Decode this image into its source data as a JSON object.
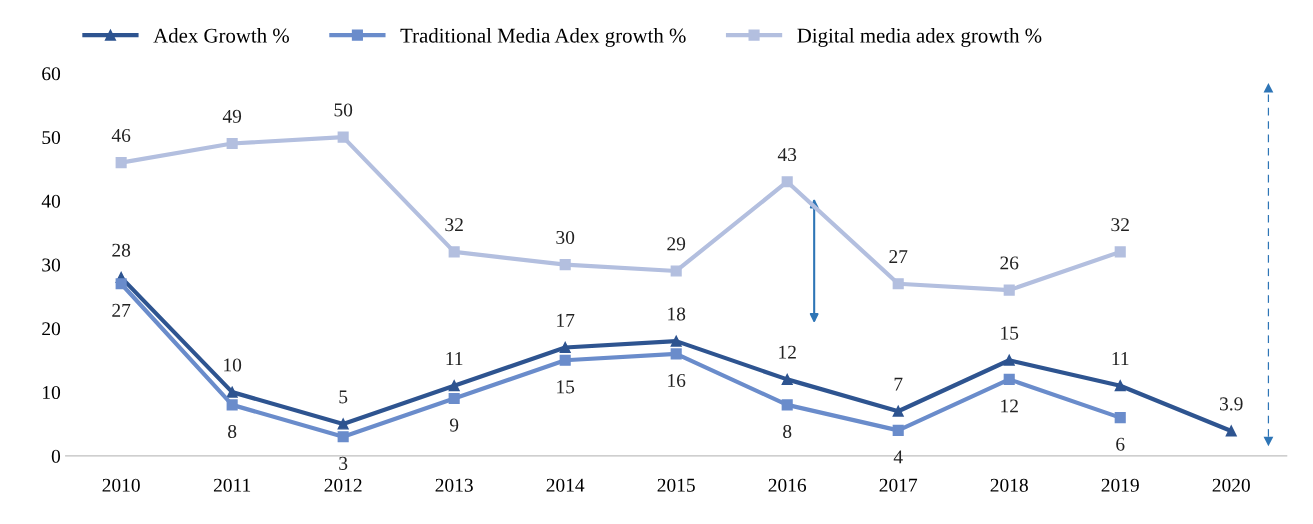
{
  "chart_data": {
    "type": "line",
    "categories": [
      "2010",
      "2011",
      "2012",
      "2013",
      "2014",
      "2015",
      "2016",
      "2017",
      "2018",
      "2019",
      "2020"
    ],
    "series": [
      {
        "name": "Adex Growth %",
        "color": "#2e5490",
        "marker": "triangle",
        "values": [
          28,
          10,
          5,
          11,
          17,
          18,
          12,
          7,
          15,
          11,
          3.9
        ]
      },
      {
        "name": "Traditional Media Adex growth %",
        "color": "#6a8ccb",
        "marker": "square",
        "values": [
          27,
          8,
          3,
          9,
          15,
          16,
          8,
          4,
          12,
          6,
          null
        ]
      },
      {
        "name": "Digital media adex growth %",
        "color": "#b3bfdf",
        "marker": "square",
        "values": [
          46,
          49,
          50,
          32,
          30,
          29,
          43,
          27,
          26,
          32,
          null
        ]
      }
    ],
    "ylim": [
      0,
      60
    ],
    "yticks": [
      0,
      10,
      20,
      30,
      40,
      50,
      60
    ],
    "data_labels": true,
    "grid": false,
    "legend": "top left",
    "line_style": "solid"
  }
}
